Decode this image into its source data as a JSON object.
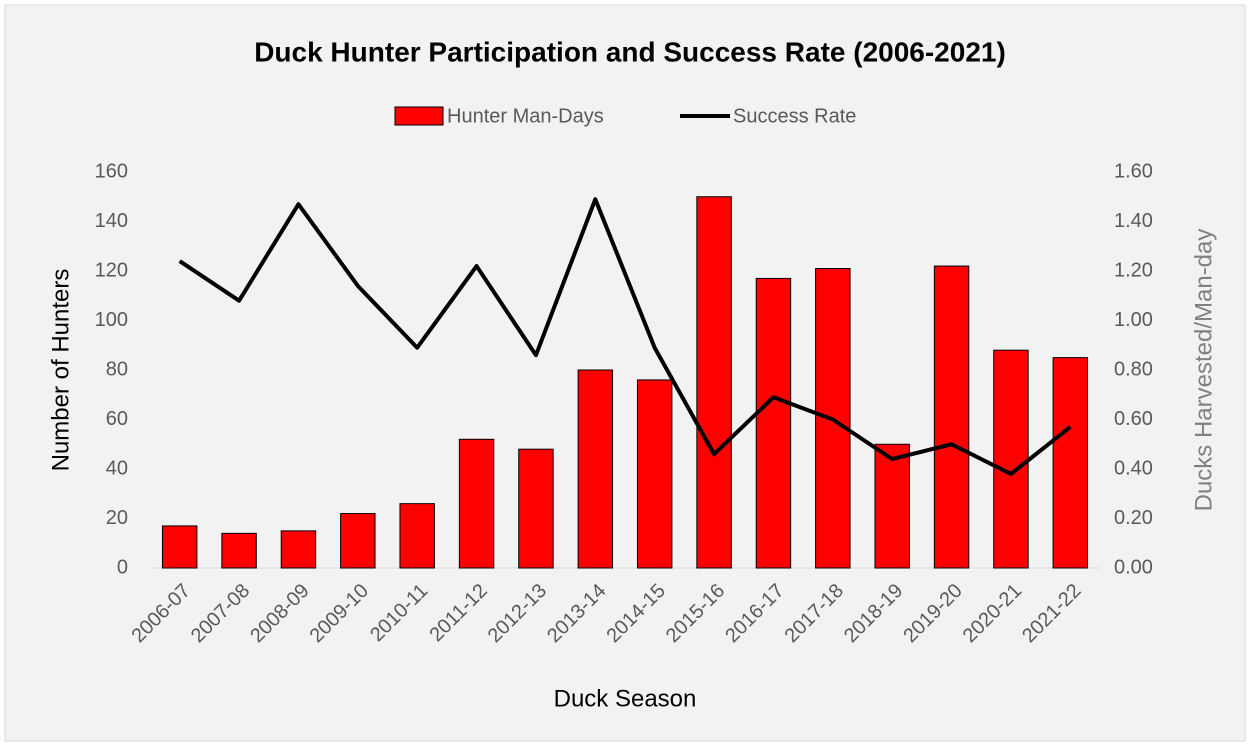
{
  "chart_data": {
    "type": "bar_line",
    "title": "Duck Hunter Participation and Success Rate (2006-2021)",
    "x_label": "Duck Season",
    "y_label": "Number of Hunters",
    "y2_label": "Ducks Harvested/Man-day",
    "categories": [
      "2006-07",
      "2007-08",
      "2008-09",
      "2009-10",
      "2010-11",
      "2011-12",
      "2012-13",
      "2013-14",
      "2014-15",
      "2015-16",
      "2016-17",
      "2017-18",
      "2018-19",
      "2019-20",
      "2020-21",
      "2021-22"
    ],
    "series": [
      {
        "name": "Hunter Man-Days",
        "type": "bar",
        "color": "#ff0000",
        "values": [
          17,
          14,
          15,
          22,
          26,
          52,
          48,
          80,
          76,
          150,
          117,
          121,
          50,
          122,
          88,
          85
        ]
      },
      {
        "name": "Success Rate",
        "type": "line",
        "axis": "y2",
        "color": "#000000",
        "values": [
          1.24,
          1.08,
          1.47,
          1.14,
          0.89,
          1.22,
          0.86,
          1.49,
          0.89,
          0.46,
          0.69,
          0.6,
          0.44,
          0.5,
          0.38,
          0.57
        ]
      }
    ],
    "ylim": [
      0,
      160
    ],
    "yticks": [
      0,
      20,
      40,
      60,
      80,
      100,
      120,
      140,
      160
    ],
    "y2lim": [
      0,
      1.6
    ],
    "y2ticks": [
      {
        "value": 0,
        "label": "0.00"
      },
      {
        "value": 0.2,
        "label": "0.20"
      },
      {
        "value": 0.4,
        "label": "0.40"
      },
      {
        "value": 0.6,
        "label": "0.60"
      },
      {
        "value": 0.8,
        "label": "0.80"
      },
      {
        "value": 1,
        "label": "1.00"
      },
      {
        "value": 1.2,
        "label": "1.20"
      },
      {
        "value": 1.4,
        "label": "1.40"
      },
      {
        "value": 1.6,
        "label": "1.60"
      }
    ],
    "grid": false,
    "legend": "top"
  }
}
